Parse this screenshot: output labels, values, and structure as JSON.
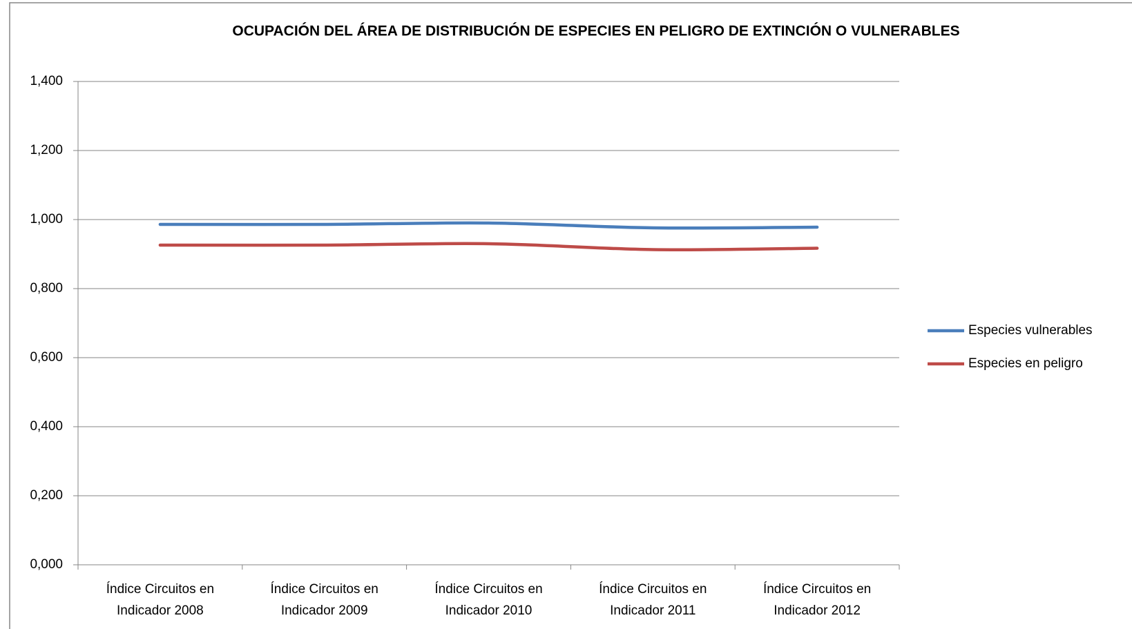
{
  "chart_data": {
    "type": "line",
    "title": "OCUPACIÓN DEL ÁREA DE DISTRIBUCIÓN DE ESPECIES EN PELIGRO DE EXTINCIÓN O VULNERABLES",
    "categories": [
      "Índice Circuitos en Indicador 2008",
      "Índice Circuitos en Indicador 2009",
      "Índice Circuitos en Indicador 2010",
      "Índice Circuitos en Indicador 2011",
      "Índice Circuitos en Indicador 2012"
    ],
    "series": [
      {
        "name": "Especies vulnerables",
        "color": "#4a7ebb",
        "values": [
          0.986,
          0.986,
          0.99,
          0.976,
          0.978
        ]
      },
      {
        "name": "Especies en peligro",
        "color": "#be4b48",
        "values": [
          0.926,
          0.926,
          0.93,
          0.913,
          0.917
        ]
      }
    ],
    "ylim": [
      0,
      1.4
    ],
    "yticks": [
      {
        "value": 0,
        "label": "0,000"
      },
      {
        "value": 0.2,
        "label": "0,200"
      },
      {
        "value": 0.4,
        "label": "0,400"
      },
      {
        "value": 0.6,
        "label": "0,600"
      },
      {
        "value": 0.8,
        "label": "0,800"
      },
      {
        "value": 1.0,
        "label": "1,000"
      },
      {
        "value": 1.2,
        "label": "1,200"
      },
      {
        "value": 1.4,
        "label": "1,400"
      }
    ],
    "grid": true,
    "legend": "right"
  }
}
